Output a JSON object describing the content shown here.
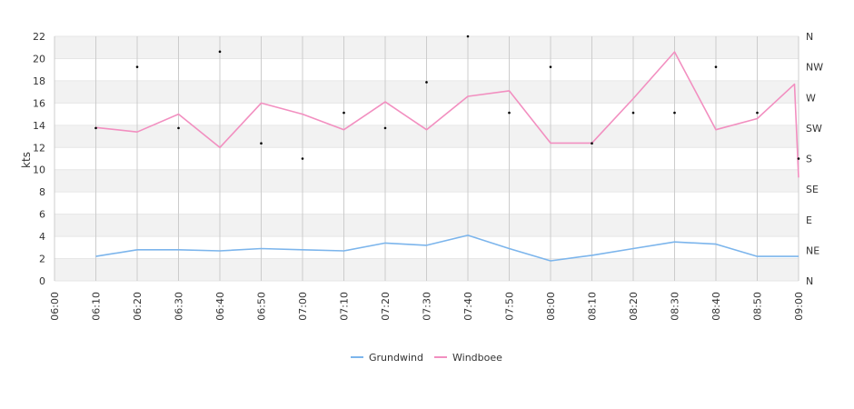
{
  "chart_data": {
    "type": "line",
    "title": "",
    "xlabel": "",
    "ylabel": "kts",
    "ylim": [
      0,
      22
    ],
    "grid": true,
    "legend_position": "bottom-center",
    "x_ticks": [
      "06:00",
      "06:10",
      "06:20",
      "06:30",
      "06:40",
      "06:50",
      "07:00",
      "07:10",
      "07:20",
      "07:30",
      "07:40",
      "07:50",
      "08:00",
      "08:10",
      "08:20",
      "08:30",
      "08:40",
      "08:50",
      "09:00"
    ],
    "y_ticks": [
      0,
      2,
      4,
      6,
      8,
      10,
      12,
      14,
      16,
      18,
      20,
      22
    ],
    "y2_ticks": [
      "N",
      "NE",
      "E",
      "SE",
      "S",
      "SW",
      "W",
      "NW",
      "N"
    ],
    "series": [
      {
        "name": "Grundwind",
        "color": "#7cb5ec",
        "points": [
          {
            "x": "06:10",
            "y": 2.2
          },
          {
            "x": "06:20",
            "y": 2.8
          },
          {
            "x": "06:30",
            "y": 2.8
          },
          {
            "x": "06:40",
            "y": 2.7
          },
          {
            "x": "06:50",
            "y": 2.9
          },
          {
            "x": "07:00",
            "y": 2.8
          },
          {
            "x": "07:10",
            "y": 2.7
          },
          {
            "x": "07:20",
            "y": 3.4
          },
          {
            "x": "07:30",
            "y": 3.2
          },
          {
            "x": "07:40",
            "y": 4.1
          },
          {
            "x": "07:50",
            "y": 2.9
          },
          {
            "x": "08:00",
            "y": 1.8
          },
          {
            "x": "08:10",
            "y": 2.3
          },
          {
            "x": "08:20",
            "y": 2.9
          },
          {
            "x": "08:30",
            "y": 3.5
          },
          {
            "x": "08:40",
            "y": 3.3
          },
          {
            "x": "08:50",
            "y": 2.2
          },
          {
            "x": "09:00",
            "y": 2.2
          }
        ]
      },
      {
        "name": "Windboee",
        "color": "#f28fc0",
        "points": [
          {
            "x": "06:10",
            "y": 13.8
          },
          {
            "x": "06:20",
            "y": 13.4
          },
          {
            "x": "06:30",
            "y": 15.0
          },
          {
            "x": "06:40",
            "y": 12.0
          },
          {
            "x": "06:50",
            "y": 16.0
          },
          {
            "x": "07:00",
            "y": 15.0
          },
          {
            "x": "07:10",
            "y": 13.6
          },
          {
            "x": "07:20",
            "y": 16.1
          },
          {
            "x": "07:30",
            "y": 13.6
          },
          {
            "x": "07:40",
            "y": 16.6
          },
          {
            "x": "07:50",
            "y": 17.1
          },
          {
            "x": "08:00",
            "y": 12.4
          },
          {
            "x": "08:10",
            "y": 12.4
          },
          {
            "x": "08:20",
            "y": 16.4
          },
          {
            "x": "08:30",
            "y": 20.6
          },
          {
            "x": "08:40",
            "y": 13.6
          },
          {
            "x": "08:50",
            "y": 14.6
          },
          {
            "x": "08:59",
            "y": 17.7
          },
          {
            "x": "09:00",
            "y": 9.3
          }
        ]
      }
    ],
    "direction_points": [
      {
        "x": "06:10",
        "dir": "SW"
      },
      {
        "x": "06:20",
        "dir": "NW"
      },
      {
        "x": "06:30",
        "dir": "SW"
      },
      {
        "x": "06:40",
        "dir": "NNW"
      },
      {
        "x": "06:50",
        "dir": "SSW"
      },
      {
        "x": "07:00",
        "dir": "S"
      },
      {
        "x": "07:10",
        "dir": "WSW"
      },
      {
        "x": "07:20",
        "dir": "SW"
      },
      {
        "x": "07:30",
        "dir": "WNW"
      },
      {
        "x": "07:40",
        "dir": "N"
      },
      {
        "x": "07:50",
        "dir": "WSW"
      },
      {
        "x": "08:00",
        "dir": "NW"
      },
      {
        "x": "08:10",
        "dir": "SSW"
      },
      {
        "x": "08:20",
        "dir": "WSW"
      },
      {
        "x": "08:30",
        "dir": "WSW"
      },
      {
        "x": "08:40",
        "dir": "NW"
      },
      {
        "x": "08:50",
        "dir": "WSW"
      },
      {
        "x": "09:00",
        "dir": "S"
      }
    ]
  }
}
